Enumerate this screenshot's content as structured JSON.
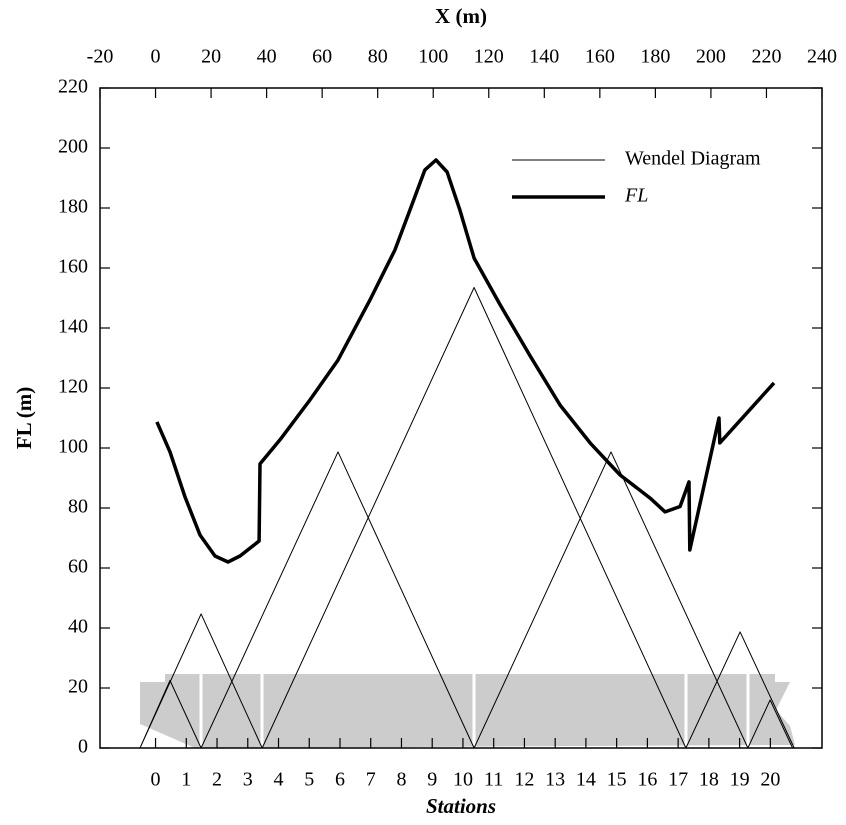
{
  "chart_data": {
    "type": "line",
    "xlabel": "X (m)",
    "ylabel": "FL (m)",
    "x2label": "Stations",
    "xlim": [
      -20,
      240
    ],
    "xticks": [
      -20,
      0,
      20,
      40,
      60,
      80,
      100,
      120,
      140,
      160,
      180,
      200,
      220,
      240
    ],
    "ylim": [
      0,
      220
    ],
    "yticks": [
      0,
      20,
      40,
      60,
      80,
      100,
      120,
      140,
      160,
      180,
      200,
      220
    ],
    "x2lim": [
      -1.807,
      21.68
    ],
    "x2ticks": [
      0,
      1,
      2,
      3,
      4,
      5,
      6,
      7,
      8,
      9,
      10,
      11,
      12,
      13,
      14,
      15,
      16,
      17,
      18,
      19,
      20
    ],
    "legend": "upper right",
    "series": [
      {
        "name": "Wendel Diagram",
        "color": "#000000",
        "width": 1,
        "x": [
          -5.6,
          5.2,
          16.4,
          null,
          -5.6,
          16.4,
          38.4,
          null,
          16.4,
          65.7,
          114.7,
          null,
          38.4,
          114.7,
          191.0,
          null,
          114.7,
          164.0,
          213.3,
          null,
          191.0,
          210.5,
          230.0,
          null,
          213.3,
          221.3,
          229.4
        ],
        "values": [
          0,
          22.5,
          0,
          null,
          0,
          44.7,
          0,
          null,
          0,
          98.7,
          0,
          null,
          0,
          153.5,
          0,
          null,
          0,
          98.7,
          0,
          null,
          0,
          38.7,
          0,
          null,
          0,
          16,
          0
        ]
      },
      {
        "name": "FL",
        "color": "#000000",
        "width": 3.5,
        "x": [
          0.5,
          5.2,
          10.6,
          16.0,
          21.4,
          26.1,
          30.4,
          37.3,
          37.6,
          44.8,
          55.6,
          65.7,
          77.2,
          86.2,
          91.6,
          97.0,
          101.0,
          105.0,
          109.6,
          114.7,
          124.1,
          134.9,
          145.7,
          156.5,
          167.3,
          178.1,
          183.5,
          188.9,
          192.1,
          192.4,
          202.9,
          203.2,
          222.7
        ],
        "values": [
          108.7,
          98.7,
          83.7,
          71,
          64,
          62,
          64,
          69,
          94.7,
          102.7,
          116,
          129.3,
          149.3,
          166,
          179.3,
          192.7,
          196,
          192,
          179.3,
          163.3,
          147.7,
          130.7,
          114.3,
          101.7,
          91,
          83.3,
          78.7,
          80.5,
          88.7,
          66,
          110,
          101.7,
          121.7
        ]
      }
    ]
  }
}
